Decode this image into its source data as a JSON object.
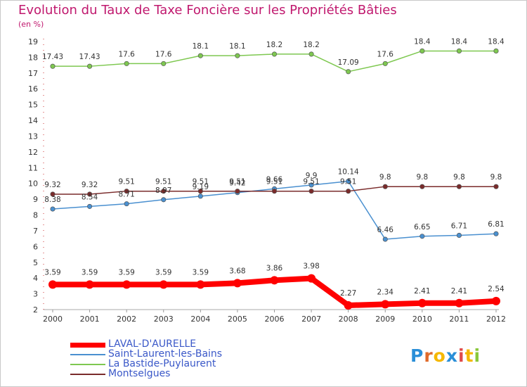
{
  "chart_data": {
    "type": "line",
    "title": "Evolution du Taux de Taxe Foncière sur les Propriétés Bâties",
    "unit_label": "(en %)",
    "x": [
      "2000",
      "2001",
      "2002",
      "2003",
      "2004",
      "2005",
      "2006",
      "2007",
      "2008",
      "2009",
      "2010",
      "2011",
      "2012"
    ],
    "y_ticks": [
      2,
      3,
      4,
      5,
      6,
      7,
      8,
      9,
      10,
      11,
      12,
      13,
      14,
      15,
      16,
      17,
      18,
      19
    ],
    "ylim": [
      2,
      19
    ],
    "grid": false,
    "legend_position": "bottom-left",
    "series": [
      {
        "name": "LAVAL-D'AURELLE",
        "color": "#ff0000",
        "width": 8,
        "values": [
          3.59,
          3.59,
          3.59,
          3.59,
          3.59,
          3.68,
          3.86,
          3.98,
          2.27,
          2.34,
          2.41,
          2.41,
          2.54
        ],
        "labels": [
          "3.59",
          "3.59",
          "3.59",
          "3.59",
          "3.59",
          "3.68",
          "3.86",
          "3.98",
          "2.27",
          "2.34",
          "2.41",
          "2.41",
          "2.54"
        ]
      },
      {
        "name": "Saint-Laurent-les-Bains",
        "color": "#4a90d0",
        "width": 1.5,
        "values": [
          8.38,
          8.54,
          8.71,
          8.97,
          9.19,
          9.42,
          9.66,
          9.9,
          10.14,
          6.46,
          6.65,
          6.71,
          6.81
        ],
        "labels": [
          "8.38",
          "8.54",
          "8.71",
          "8.97",
          "9.19",
          "9.42",
          "9.66",
          "9.9",
          "10.14",
          "6.46",
          "6.65",
          "6.71",
          "6.81"
        ]
      },
      {
        "name": "La Bastide-Puylaurent",
        "color": "#7ec850",
        "width": 1.5,
        "values": [
          17.43,
          17.43,
          17.6,
          17.6,
          18.1,
          18.1,
          18.2,
          18.2,
          17.09,
          17.6,
          18.4,
          18.4,
          18.4
        ],
        "labels": [
          "17.43",
          "17.43",
          "17.6",
          "17.6",
          "18.1",
          "18.1",
          "18.2",
          "18.2",
          "17.09",
          "17.6",
          "18.4",
          "18.4",
          "18.4"
        ]
      },
      {
        "name": "Montselgues",
        "color": "#7a2b2b",
        "width": 1.5,
        "values": [
          9.32,
          9.32,
          9.51,
          9.51,
          9.51,
          9.51,
          9.51,
          9.51,
          9.51,
          9.8,
          9.8,
          9.8,
          9.8
        ],
        "labels": [
          "9.32",
          "9.32",
          "9.51",
          "9.51",
          "9.51",
          "9.51",
          "9.51",
          "9.51",
          "9.51",
          "9.8",
          "9.8",
          "9.8",
          "9.8"
        ]
      }
    ]
  },
  "logo": {
    "text": "Proxiti",
    "letter_colors": [
      "#2a8fd8",
      "#e06a2a",
      "#f5b800",
      "#2a8fd8",
      "#e04a4a",
      "#f5b800",
      "#8ac83a"
    ]
  }
}
